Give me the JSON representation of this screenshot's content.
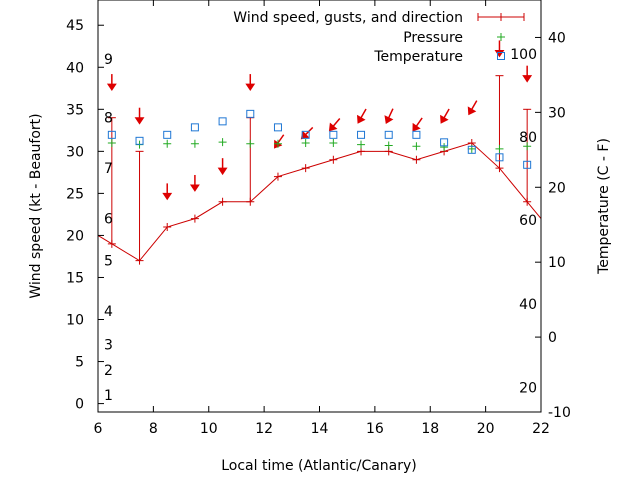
{
  "chart_data": {
    "type": "line",
    "xlabel": "Local time (Atlantic/Canary)",
    "ylabel": "Wind speed (kt - Beaufort)",
    "y2label": "Temperature (C - F)",
    "xlim": [
      6,
      22
    ],
    "ylim": [
      -1,
      48
    ],
    "y2lim": [
      -10,
      45
    ],
    "x_ticks": [
      6,
      8,
      10,
      12,
      14,
      16,
      18,
      20,
      22
    ],
    "y_ticks": [
      0,
      5,
      10,
      15,
      20,
      25,
      30,
      35,
      40,
      45
    ],
    "y2_ticks": [
      -10,
      0,
      10,
      20,
      30,
      40
    ],
    "beaufort_labels": [
      {
        "text": "1",
        "y": 1
      },
      {
        "text": "2",
        "y": 4
      },
      {
        "text": "3",
        "y": 7
      },
      {
        "text": "4",
        "y": 11
      },
      {
        "text": "5",
        "y": 17
      },
      {
        "text": "6",
        "y": 22
      },
      {
        "text": "7",
        "y": 28
      },
      {
        "text": "8",
        "y": 34
      },
      {
        "text": "9",
        "y": 41
      }
    ],
    "fahrenheit_labels": [
      {
        "text": "20",
        "y2": -6.7
      },
      {
        "text": "40",
        "y2": 4.4
      },
      {
        "text": "60",
        "y2": 15.6
      },
      {
        "text": "80",
        "y2": 26.7
      },
      {
        "text": "100",
        "y2": 37.8
      }
    ],
    "legend": {
      "position": "top-right",
      "entries": [
        {
          "label": "Wind speed, gusts, and direction",
          "color": "#cc0000",
          "marker": "errorbar"
        },
        {
          "label": "Pressure",
          "color": "#22aa22",
          "marker": "plus"
        },
        {
          "label": "Temperature",
          "color": "#1f77d4",
          "marker": "square"
        }
      ]
    },
    "series": [
      {
        "name": "Wind speed, gusts, and direction",
        "color": "#cc0000",
        "x": [
          6.5,
          7.5,
          8.5,
          9.5,
          10.5,
          11.5,
          12.5,
          13.5,
          14.5,
          15.5,
          16.5,
          17.5,
          18.5,
          19.5,
          20.5,
          21.5
        ],
        "speed": [
          19,
          17,
          21,
          22,
          24,
          24,
          27,
          28,
          29,
          30,
          30,
          29,
          30,
          31,
          28,
          24
        ],
        "gust": [
          34,
          30,
          null,
          null,
          null,
          34,
          null,
          null,
          null,
          null,
          null,
          null,
          null,
          null,
          39,
          35
        ],
        "direction_deg": [
          0,
          0,
          0,
          0,
          0,
          0,
          35,
          45,
          40,
          30,
          25,
          35,
          30,
          30,
          0,
          0
        ],
        "arrow_y": [
          38,
          34,
          25,
          26,
          28,
          38,
          31,
          32,
          33,
          34,
          34,
          33,
          34,
          35,
          42,
          39
        ]
      },
      {
        "name": "Pressure",
        "color": "#22aa22",
        "x": [
          6.5,
          7.5,
          8.5,
          9.5,
          10.5,
          11.5,
          12.5,
          13.5,
          14.5,
          15.5,
          16.5,
          17.5,
          18.5,
          19.5,
          20.5,
          21.5
        ],
        "y": [
          31,
          30.8,
          30.9,
          30.9,
          31.1,
          30.9,
          30.9,
          31,
          31,
          30.8,
          30.7,
          30.6,
          30.5,
          30.3,
          30.3,
          30.6
        ]
      },
      {
        "name": "Temperature",
        "color": "#1f77d4",
        "x": [
          6.5,
          7.5,
          8.5,
          9.5,
          10.5,
          11.5,
          12.5,
          13.5,
          14.5,
          15.5,
          16.5,
          17.5,
          18.5,
          19.5,
          20.5,
          21.5
        ],
        "y2": [
          27,
          26.2,
          27,
          28,
          28.8,
          29.8,
          28,
          27,
          27,
          27,
          27,
          27,
          26,
          25,
          24,
          23
        ]
      }
    ]
  }
}
